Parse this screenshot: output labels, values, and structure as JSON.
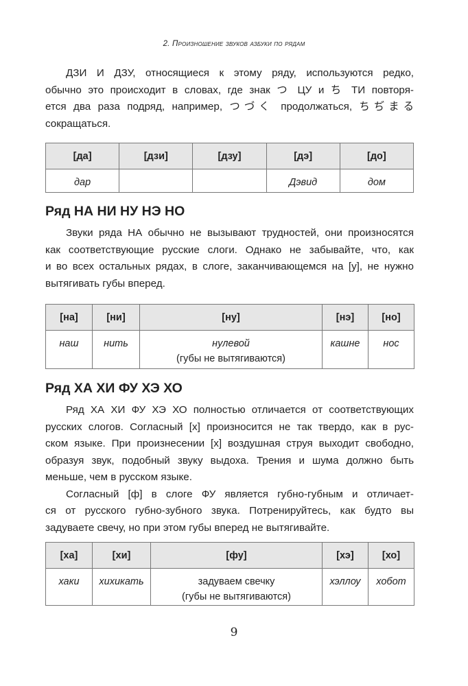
{
  "running_header": "2. Произношение звуков азбуки по рядам",
  "intro": {
    "lines": [
      "ДЗИ И ДЗУ, относящиеся к этому ряду, используются редко,",
      "обычно это происходит в словах, где знак つ ЦУ и ち ТИ повторя-",
      "ется два раза подряд, например, つづく продолжаться, ちぢまる",
      "сокращаться."
    ]
  },
  "table_da": {
    "headers": [
      "[да]",
      "[дзи]",
      "[дзу]",
      "[дэ]",
      "[до]"
    ],
    "cells": [
      "дар",
      "",
      "",
      "Дэвид",
      "дом"
    ]
  },
  "section_na": {
    "heading": "Ряд НА НИ НУ НЭ НО",
    "lines": [
      "Звуки ряда НА обычно не вызывают трудностей, они произносятся",
      "как соответствующие русские слоги. Однако не забывайте, что, как",
      "и во всех остальных рядах, в слоге, заканчивающемся на [у], не нужно",
      "вытягивать губы вперед."
    ],
    "table": {
      "headers": [
        "[на]",
        "[ни]",
        "[ну]",
        "[нэ]",
        "[но]"
      ],
      "cells": [
        "наш",
        "нить",
        "нулевой",
        "кашне",
        "нос"
      ],
      "note": "(губы не вытягиваются)"
    }
  },
  "section_ha": {
    "heading": "Ряд ХА ХИ ФУ ХЭ ХО",
    "para1": [
      "Ряд ХА ХИ ФУ ХЭ ХО полностью отличается от соответствующих",
      "русских слогов. Согласный [х] произносится не так твердо, как в рус-",
      "ском языке. При произнесении [х] воздушная струя выходит свободно,",
      "образуя звук, подобный звуку выдоха. Трения и шума должно быть",
      "меньше, чем в русском языке."
    ],
    "para2": [
      "Согласный [ф] в слоге ФУ является губно-губным и отличает-",
      "ся от русского губно-зубного звука. Потренируйтесь, как будто вы",
      "задуваете свечу, но при этом губы вперед не вытягивайте."
    ],
    "table": {
      "headers": [
        "[ха]",
        "[хи]",
        "[фу]",
        "[хэ]",
        "[хо]"
      ],
      "cells": [
        "хаки",
        "хихикать",
        "задуваем свечку",
        "хэллоу",
        "хобот"
      ],
      "note": "(губы не вытягиваются)"
    }
  },
  "page_number": "9"
}
